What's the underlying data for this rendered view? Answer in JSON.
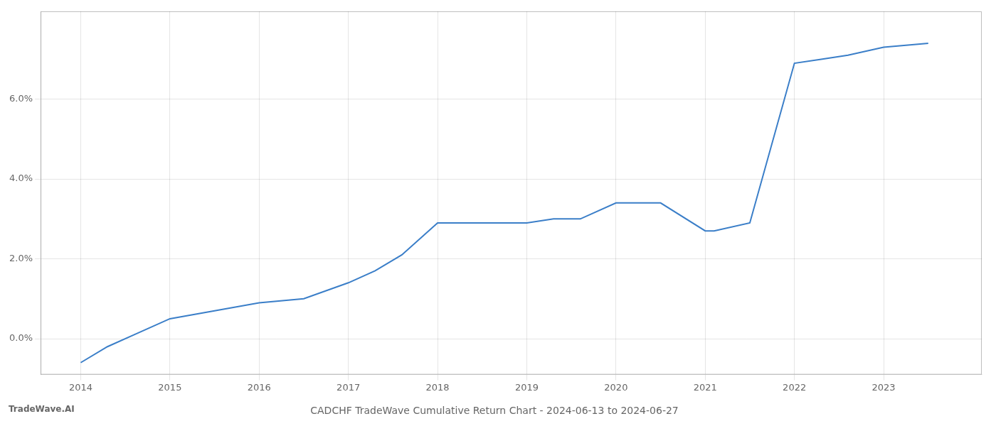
{
  "chart_data": {
    "type": "line",
    "title": "CADCHF TradeWave Cumulative Return Chart - 2024-06-13 to 2024-06-27",
    "annotations": [
      "TradeWave.AI"
    ],
    "x": [
      2014.0,
      2014.3,
      2014.6,
      2015.0,
      2015.5,
      2016.0,
      2016.5,
      2017.0,
      2017.3,
      2017.6,
      2018.0,
      2018.5,
      2019.0,
      2019.3,
      2019.6,
      2020.0,
      2020.5,
      2021.0,
      2021.1,
      2021.5,
      2022.0,
      2022.3,
      2022.6,
      2023.0,
      2023.5
    ],
    "values": [
      -0.006,
      -0.002,
      0.001,
      0.005,
      0.007,
      0.009,
      0.01,
      0.014,
      0.017,
      0.021,
      0.029,
      0.029,
      0.029,
      0.03,
      0.03,
      0.034,
      0.034,
      0.027,
      0.027,
      0.029,
      0.069,
      0.07,
      0.071,
      0.073,
      0.074
    ],
    "color": "#3a7ec8",
    "xlim": [
      2013.55,
      2024.1
    ],
    "xticks": [
      2014,
      2015,
      2016,
      2017,
      2018,
      2019,
      2020,
      2021,
      2022,
      2023
    ],
    "ylim": [
      -0.009,
      0.082
    ],
    "yticks": [
      {
        "value": 0.0,
        "label": "0.0%"
      },
      {
        "value": 0.02,
        "label": "2.0%"
      },
      {
        "value": 0.04,
        "label": "4.0%"
      },
      {
        "value": 0.06,
        "label": "6.0%"
      }
    ],
    "grid": true
  }
}
